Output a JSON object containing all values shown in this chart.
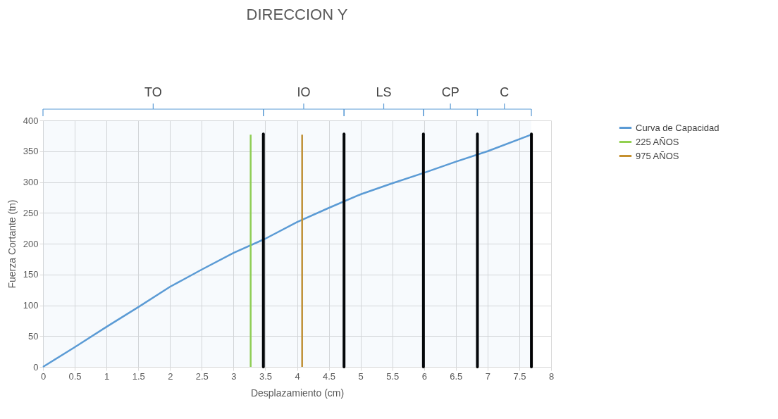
{
  "chart_data": {
    "type": "line",
    "title": "DIRECCION Y",
    "xlabel": "Desplazamiento (cm)",
    "ylabel": "Fuerza Cortante (tn)",
    "xlim": [
      0,
      8
    ],
    "xticks": [
      0,
      0.5,
      1,
      1.5,
      2,
      2.5,
      3,
      3.5,
      4,
      4.5,
      5,
      5.5,
      6,
      6.5,
      7,
      7.5,
      8
    ],
    "ylim": [
      0,
      400
    ],
    "yticks": [
      0,
      50,
      100,
      150,
      200,
      250,
      300,
      350,
      400
    ],
    "grid": true,
    "legend": "right",
    "series": [
      {
        "name": "Curva de Capacidad",
        "color": "#5b9bd5",
        "x": [
          0,
          0.5,
          1,
          1.5,
          2,
          2.5,
          3,
          3.5,
          4,
          4.5,
          5,
          5.5,
          6,
          6.5,
          7,
          7.69
        ],
        "values": [
          0,
          32,
          65,
          97,
          130,
          158,
          185,
          208,
          235,
          258,
          280,
          298,
          315,
          333,
          350,
          377
        ]
      },
      {
        "name": "225 AÑOS",
        "color": "#92d050",
        "x": [
          3.27,
          3.27
        ],
        "values": [
          0,
          377
        ]
      },
      {
        "name": "975 AÑOS",
        "color": "#c5902f",
        "x": [
          4.08,
          4.08
        ],
        "values": [
          0,
          377
        ]
      },
      {
        "color": "#000000",
        "x": [
          3.47,
          3.47
        ],
        "values": [
          0,
          378
        ]
      },
      {
        "color": "#000000",
        "x": [
          4.74,
          4.74
        ],
        "values": [
          0,
          378
        ]
      },
      {
        "color": "#000000",
        "x": [
          5.99,
          5.99
        ],
        "values": [
          0,
          378
        ]
      },
      {
        "color": "#000000",
        "x": [
          6.84,
          6.84
        ],
        "values": [
          0,
          378
        ]
      },
      {
        "color": "#000000",
        "x": [
          7.69,
          7.69
        ],
        "values": [
          0,
          378
        ]
      }
    ],
    "bands": [
      {
        "axis": "x",
        "from": 0,
        "to": 3.47,
        "label": "TO",
        "color": "#5b9bd5"
      },
      {
        "axis": "x",
        "from": 3.47,
        "to": 4.74,
        "label": "IO",
        "color": "#5b9bd5"
      },
      {
        "axis": "x",
        "from": 4.74,
        "to": 5.99,
        "label": "LS",
        "color": "#5b9bd5"
      },
      {
        "axis": "x",
        "from": 5.99,
        "to": 6.84,
        "label": "CP",
        "color": "#5b9bd5"
      },
      {
        "axis": "x",
        "from": 6.84,
        "to": 7.69,
        "label": "C",
        "color": "#5b9bd5"
      }
    ]
  }
}
